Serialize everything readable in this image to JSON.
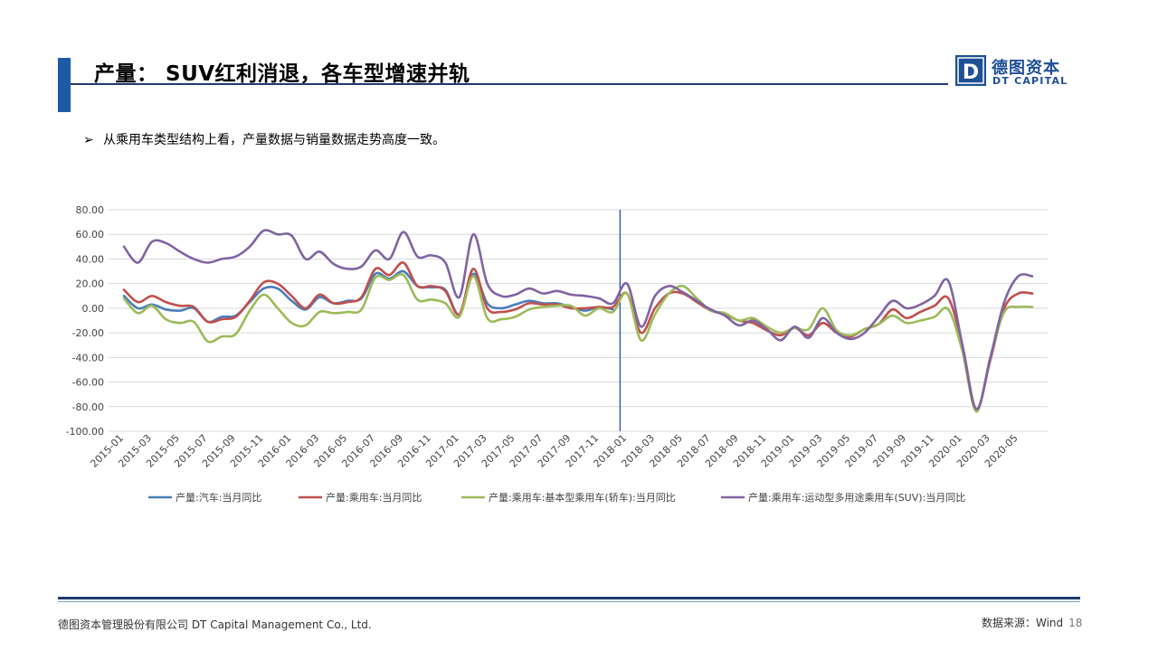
{
  "header": {
    "title": "产量： SUV红利消退，各车型增速并轨",
    "logo_cn": "德图资本",
    "logo_en": "DT CAPITAL",
    "logo_letter": "D"
  },
  "bullet": {
    "mark": "➢",
    "text": "从乘用车类型结构上看，产量数据与销量数据走势高度一致。"
  },
  "footer": {
    "company": "德图资本管理股份有限公司 DT Capital Management Co., Ltd.",
    "source": "数据来源：Wind",
    "page": "18"
  },
  "colors": {
    "accent": "#1f5aa6",
    "auto": "#4a7ebb",
    "passenger": "#c0504d",
    "sedan": "#9bbb59",
    "suv": "#8064a2"
  },
  "chart_data": {
    "type": "line",
    "title": "",
    "xlabel": "",
    "ylabel": "",
    "ylim": [
      -100,
      80
    ],
    "yticks": [
      "80.00",
      "60.00",
      "40.00",
      "20.00",
      "0.00",
      "-20.00",
      "-40.00",
      "-60.00",
      "-80.00",
      "-100.00"
    ],
    "categories": [
      "2015-01",
      "2015-02",
      "2015-03",
      "2015-04",
      "2015-05",
      "2015-06",
      "2015-07",
      "2015-08",
      "2015-09",
      "2015-10",
      "2015-11",
      "2015-12",
      "2016-01",
      "2016-02",
      "2016-03",
      "2016-04",
      "2016-05",
      "2016-06",
      "2016-07",
      "2016-08",
      "2016-09",
      "2016-10",
      "2016-11",
      "2016-12",
      "2017-01",
      "2017-02",
      "2017-03",
      "2017-04",
      "2017-05",
      "2017-06",
      "2017-07",
      "2017-08",
      "2017-09",
      "2017-10",
      "2017-11",
      "2017-12",
      "2018-01",
      "2018-02",
      "2018-03",
      "2018-04",
      "2018-05",
      "2018-06",
      "2018-07",
      "2018-08",
      "2018-09",
      "2018-10",
      "2018-11",
      "2018-12",
      "2019-01",
      "2019-02",
      "2019-03",
      "2019-04",
      "2019-05",
      "2019-06",
      "2019-07",
      "2019-08",
      "2019-09",
      "2019-10",
      "2019-11",
      "2019-12",
      "2020-01",
      "2020-02",
      "2020-03",
      "2020-04",
      "2020-05",
      "2020-06"
    ],
    "tick_labels": [
      "2015-01",
      "2015-03",
      "2015-05",
      "2015-07",
      "2015-09",
      "2015-11",
      "2016-01",
      "2016-03",
      "2016-05",
      "2016-07",
      "2016-09",
      "2016-11",
      "2017-01",
      "2017-03",
      "2017-05",
      "2017-07",
      "2017-09",
      "2017-11",
      "2018-01",
      "2018-03",
      "2018-05",
      "2018-07",
      "2018-09",
      "2018-11",
      "2019-01",
      "2019-03",
      "2019-05",
      "2019-07",
      "2019-09",
      "2019-11",
      "2020-01",
      "2020-03",
      "2020-05"
    ],
    "vertical_marker": "2017-12",
    "grid": true,
    "legend_position": "bottom",
    "series": [
      {
        "name": "产量:汽车:当月同比",
        "color_key": "auto",
        "values": [
          10,
          0,
          3,
          -1,
          -2,
          0,
          -11,
          -7,
          -6,
          5,
          16,
          16,
          6,
          -1,
          9,
          4,
          6,
          8,
          28,
          24,
          30,
          18,
          17,
          15,
          -5,
          28,
          4,
          0,
          3,
          6,
          4,
          4,
          1,
          -2,
          1,
          -1,
          null,
          null,
          null,
          null,
          null,
          null,
          null,
          null,
          null,
          null,
          null,
          null,
          null,
          null,
          null,
          null,
          null,
          null,
          null,
          null,
          null,
          null,
          null,
          null,
          null,
          null,
          null,
          null,
          null,
          null
        ]
      },
      {
        "name": "产量:乘用车:当月同比",
        "color_key": "passenger",
        "values": [
          15,
          5,
          10,
          5,
          2,
          1,
          -11,
          -9,
          -7,
          6,
          21,
          20,
          10,
          0,
          11,
          4,
          5,
          9,
          32,
          27,
          37,
          18,
          18,
          14,
          -5,
          32,
          0,
          -3,
          -1,
          4,
          3,
          3,
          0,
          0,
          1,
          1,
          12,
          -20,
          0,
          12,
          12,
          5,
          -2,
          -5,
          -10,
          -12,
          -18,
          -22,
          -16,
          -22,
          -12,
          -20,
          -23,
          -17,
          -13,
          -1,
          -8,
          -3,
          2,
          8,
          -30,
          -82,
          -42,
          0,
          12,
          12
        ]
      },
      {
        "name": "产量:乘用车:基本型乘用车(轿车):当月同比",
        "color_key": "sedan",
        "values": [
          8,
          -4,
          2,
          -9,
          -12,
          -11,
          -27,
          -23,
          -21,
          -2,
          11,
          0,
          -12,
          -14,
          -3,
          -4,
          -3,
          -1,
          25,
          23,
          27,
          7,
          7,
          4,
          -7,
          26,
          -8,
          -9,
          -7,
          -1,
          1,
          2,
          2,
          -6,
          0,
          -3,
          12,
          -26,
          -5,
          12,
          18,
          8,
          -2,
          -4,
          -10,
          -8,
          -15,
          -20,
          -16,
          -17,
          0,
          -18,
          -22,
          -17,
          -13,
          -6,
          -12,
          -10,
          -7,
          -1,
          -35,
          -84,
          -40,
          -3,
          1,
          1
        ]
      },
      {
        "name": "产量:乘用车:运动型多用途乘用车(SUV):当月同比",
        "color_key": "suv",
        "values": [
          50,
          37,
          54,
          53,
          46,
          40,
          37,
          40,
          42,
          50,
          63,
          60,
          59,
          40,
          46,
          36,
          32,
          34,
          47,
          40,
          62,
          42,
          43,
          37,
          9,
          60,
          20,
          10,
          11,
          16,
          12,
          14,
          11,
          10,
          8,
          4,
          20,
          -15,
          10,
          18,
          13,
          6,
          -1,
          -6,
          -14,
          -10,
          -17,
          -26,
          -15,
          -24,
          -8,
          -20,
          -25,
          -20,
          -7,
          6,
          0,
          3,
          10,
          22,
          -30,
          -82,
          -40,
          5,
          26,
          26
        ]
      }
    ]
  }
}
